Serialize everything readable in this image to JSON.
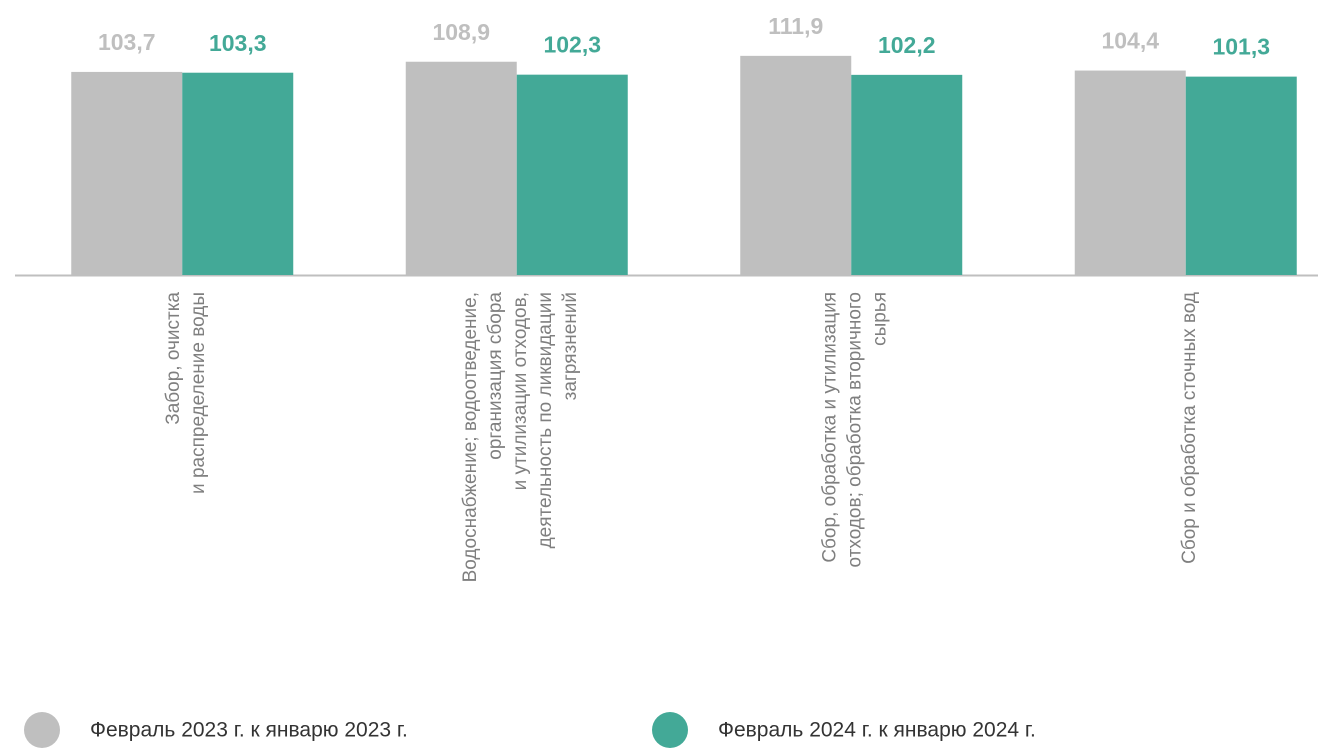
{
  "chart_data": {
    "type": "bar",
    "categories": [
      "Забор, очистка\nи распределение воды",
      "Водоснабжение; водоотведение,\nорганизация сбора\nи утилизации отходов,\nдеятельность по ликвидации\nзагрязнений",
      "Сбор, обработка и утилизация\nотходов; обработка вторичного\nсырья",
      "Сбор и обработка сточных вод"
    ],
    "series": [
      {
        "name": "Февраль 2023 г. к январю 2023 г.",
        "color": "#bfbfbf",
        "values": [
          103.7,
          108.9,
          111.9,
          104.4
        ],
        "value_labels": [
          "103,7",
          "108,9",
          "111,9",
          "104,4"
        ]
      },
      {
        "name": "Февраль 2024 г. к январю 2024 г.",
        "color": "#43a997",
        "values": [
          103.3,
          102.3,
          102.2,
          101.3
        ],
        "value_labels": [
          "103,3",
          "102,3",
          "102,2",
          "101,3"
        ]
      }
    ],
    "ylim": [
      0,
      120
    ],
    "grid": false
  }
}
